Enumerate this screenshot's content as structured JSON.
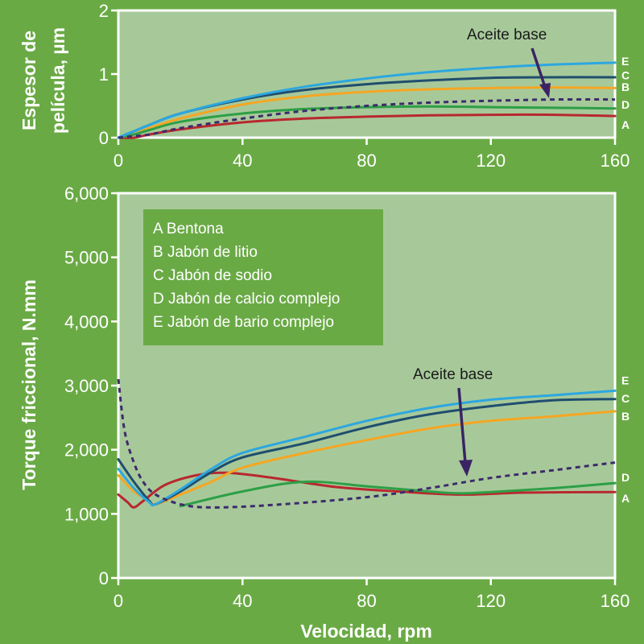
{
  "colors": {
    "background": "#6aaa45",
    "plot_area": "#a7c99a",
    "legend_bg": "#6aaa45",
    "A": "#b8282f",
    "B": "#f5a623",
    "C": "#1f4e6e",
    "D": "#2e9f46",
    "E": "#2ca7df",
    "base": "#3d2b6b",
    "arrow": "#3a2463"
  },
  "chart_data": [
    {
      "type": "line",
      "ylabel_line1": "Espesor de",
      "ylabel_line2": "película, µm",
      "xlim": [
        0,
        160
      ],
      "ylim": [
        0,
        2
      ],
      "x_ticks": [
        0,
        40,
        80,
        120,
        160
      ],
      "x_tick_labels": [
        "0",
        "40",
        "80",
        "120",
        "160"
      ],
      "y_ticks": [
        0,
        1,
        2
      ],
      "y_tick_labels": [
        "0",
        "1",
        "2"
      ],
      "annotation": {
        "text": "Aceite base"
      },
      "end_labels": [
        {
          "text": "E",
          "y": 1.2
        },
        {
          "text": "C",
          "y": 0.98
        },
        {
          "text": "B",
          "y": 0.8
        },
        {
          "text": "D",
          "y": 0.52
        },
        {
          "text": "A",
          "y": 0.2
        }
      ],
      "series": [
        {
          "key": "A",
          "x": [
            0,
            5,
            10,
            20,
            40,
            60,
            80,
            100,
            120,
            140,
            160
          ],
          "y": [
            0,
            0,
            0.05,
            0.13,
            0.24,
            0.3,
            0.33,
            0.35,
            0.36,
            0.36,
            0.34
          ]
        },
        {
          "key": "B",
          "x": [
            0,
            5,
            10,
            20,
            40,
            60,
            80,
            100,
            120,
            140,
            160
          ],
          "y": [
            0,
            0.05,
            0.15,
            0.3,
            0.52,
            0.65,
            0.72,
            0.76,
            0.78,
            0.79,
            0.78
          ]
        },
        {
          "key": "C",
          "x": [
            0,
            5,
            10,
            20,
            40,
            60,
            80,
            100,
            120,
            140,
            160
          ],
          "y": [
            0,
            0.1,
            0.2,
            0.38,
            0.6,
            0.75,
            0.84,
            0.9,
            0.94,
            0.95,
            0.95
          ]
        },
        {
          "key": "D",
          "x": [
            0,
            5,
            10,
            20,
            40,
            60,
            80,
            100,
            120,
            140,
            160
          ],
          "y": [
            0,
            0.05,
            0.12,
            0.25,
            0.38,
            0.45,
            0.48,
            0.49,
            0.48,
            0.47,
            0.46
          ]
        },
        {
          "key": "E",
          "x": [
            0,
            5,
            10,
            20,
            40,
            60,
            80,
            100,
            120,
            140,
            160
          ],
          "y": [
            0,
            0.1,
            0.2,
            0.38,
            0.62,
            0.8,
            0.93,
            1.03,
            1.1,
            1.15,
            1.18
          ]
        },
        {
          "key": "base",
          "dashed": true,
          "x": [
            0,
            10,
            20,
            40,
            60,
            80,
            100,
            120,
            140,
            160
          ],
          "y": [
            0,
            0.05,
            0.15,
            0.3,
            0.42,
            0.5,
            0.55,
            0.58,
            0.6,
            0.6
          ]
        }
      ]
    },
    {
      "type": "line",
      "ylabel": "Torque friccional, N.mm",
      "xlabel": "Velocidad, rpm",
      "xlim": [
        0,
        160
      ],
      "ylim": [
        0,
        6000
      ],
      "x_ticks": [
        0,
        40,
        80,
        120,
        160
      ],
      "x_tick_labels": [
        "0",
        "40",
        "80",
        "120",
        "160"
      ],
      "y_ticks": [
        0,
        1000,
        2000,
        3000,
        4000,
        5000,
        6000
      ],
      "y_tick_labels": [
        "0",
        "1,000",
        "2,000",
        "3,000",
        "4,000",
        "5,000",
        "6,000"
      ],
      "legend": [
        "A Bentona",
        "B Jabón de litio",
        "C Jabón de sodio",
        "D Jabón de calcio complejo",
        "E Jabón de bario complejo"
      ],
      "annotation": {
        "text": "Aceite base"
      },
      "end_labels": [
        {
          "text": "E",
          "y": 3080
        },
        {
          "text": "C",
          "y": 2800
        },
        {
          "text": "B",
          "y": 2520
        },
        {
          "text": "D",
          "y": 1570
        },
        {
          "text": "A",
          "y": 1240
        }
      ],
      "series": [
        {
          "key": "A",
          "x": [
            0,
            3,
            5,
            8,
            15,
            25,
            35,
            50,
            70,
            90,
            110,
            130,
            160
          ],
          "y": [
            1300,
            1180,
            1100,
            1200,
            1450,
            1600,
            1640,
            1560,
            1420,
            1350,
            1300,
            1330,
            1340
          ]
        },
        {
          "key": "B",
          "x": [
            0,
            5,
            10,
            12,
            20,
            30,
            40,
            60,
            80,
            100,
            120,
            140,
            160
          ],
          "y": [
            1600,
            1350,
            1200,
            1150,
            1300,
            1500,
            1720,
            1950,
            2150,
            2330,
            2450,
            2520,
            2600
          ]
        },
        {
          "key": "C",
          "x": [
            0,
            5,
            10,
            12,
            20,
            30,
            40,
            60,
            80,
            100,
            120,
            140,
            160
          ],
          "y": [
            1850,
            1500,
            1200,
            1150,
            1350,
            1650,
            1880,
            2100,
            2350,
            2550,
            2680,
            2770,
            2790
          ]
        },
        {
          "key": "D",
          "x": [
            20,
            40,
            60,
            80,
            100,
            110,
            120,
            140,
            160
          ],
          "y": [
            1120,
            1350,
            1500,
            1430,
            1350,
            1320,
            1340,
            1400,
            1480
          ]
        },
        {
          "key": "E",
          "x": [
            0,
            5,
            10,
            12,
            20,
            30,
            40,
            60,
            80,
            100,
            120,
            140,
            160
          ],
          "y": [
            1700,
            1400,
            1180,
            1150,
            1380,
            1700,
            1950,
            2200,
            2450,
            2650,
            2780,
            2850,
            2920
          ]
        },
        {
          "key": "base",
          "dashed": true,
          "x": [
            0,
            2,
            5,
            8,
            12,
            20,
            30,
            50,
            80,
            100,
            120,
            140,
            160
          ],
          "y": [
            3100,
            2300,
            1800,
            1500,
            1300,
            1150,
            1100,
            1140,
            1260,
            1400,
            1560,
            1680,
            1800
          ]
        }
      ]
    }
  ]
}
